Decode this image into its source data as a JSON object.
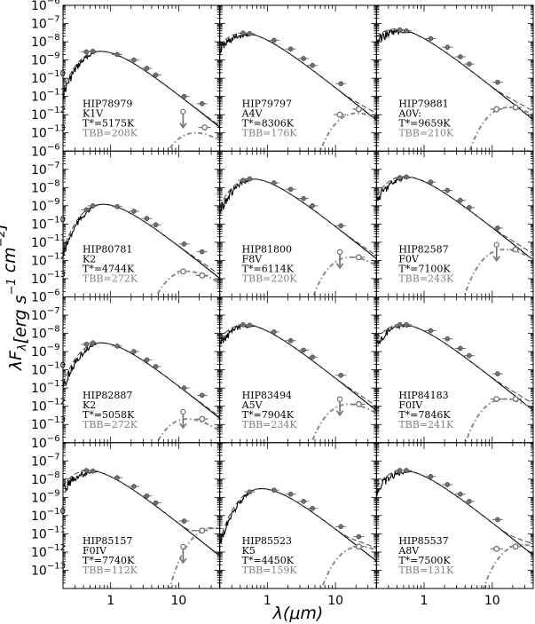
{
  "figure": {
    "ylabel": "λF_λ[erg s^-1 cm^-2]",
    "xlabel": "λ(μm)"
  },
  "axes": {
    "x_log": true,
    "y_log": true,
    "xlim": [
      0.2,
      40
    ],
    "ylim": [
      1e-14,
      1e-06
    ],
    "x_ticks": [
      1,
      10
    ],
    "x_tick_labels": [
      "1",
      "10"
    ],
    "y_ticks": [
      -13,
      -12,
      -11,
      -10,
      -9,
      -8,
      -7,
      -6
    ],
    "y_tick_labels": [
      "10^-13",
      "10^-12",
      "10^-11",
      "10^-10",
      "10^-9",
      "10^-8",
      "10^-7",
      "10^-6"
    ],
    "grid": false
  },
  "colors": {
    "star_model": "#000000",
    "disk_model": "#8a8a8a",
    "total_model": "#444444",
    "photometry": "#707070",
    "label_gray": "#808080"
  },
  "chart_data": [
    {
      "type": "line",
      "star": "HIP78979",
      "spectral_type": "K1V",
      "teff_label": "T*=5175K",
      "tbb_label": "TBB=208K",
      "teff": 5175,
      "tbb": 208,
      "star_peak": 3e-09,
      "disk_peak": 1e-13,
      "photometry": [
        [
          0.44,
          2.8e-09
        ],
        [
          0.55,
          3e-09
        ],
        [
          1.25,
          2e-09
        ],
        [
          2.2,
          1e-09
        ],
        [
          3.4,
          3.5e-10
        ],
        [
          4.6,
          1.5e-10
        ],
        [
          12,
          1e-11
        ],
        [
          22,
          4e-12
        ]
      ],
      "upper_limits": [
        [
          11.6,
          6e-13
        ]
      ],
      "excess": [
        [
          24,
          2e-13
        ]
      ]
    },
    {
      "type": "line",
      "star": "HIP79797",
      "spectral_type": "A4V",
      "teff_label": "T*=8306K",
      "tbb_label": "TBB=176K",
      "teff": 8306,
      "tbb": 176,
      "star_peak": 3e-08,
      "disk_peak": 1.2e-12,
      "photometry": [
        [
          0.44,
          3e-08
        ],
        [
          0.55,
          2.8e-08
        ],
        [
          1.25,
          1.2e-08
        ],
        [
          2.2,
          4e-09
        ],
        [
          3.4,
          1.2e-09
        ],
        [
          4.6,
          5e-10
        ],
        [
          12,
          5e-11
        ]
      ],
      "upper_limits": [],
      "excess": [
        [
          11.6,
          1e-12
        ],
        [
          22,
          2e-12
        ]
      ]
    },
    {
      "type": "line",
      "star": "HIP79881",
      "spectral_type": "A0V:",
      "teff_label": "T*=9659K",
      "tbb_label": "TBB=210K",
      "teff": 9659,
      "tbb": 210,
      "star_peak": 5e-08,
      "disk_peak": 2.5e-12,
      "photometry": [
        [
          0.44,
          4.5e-08
        ],
        [
          0.55,
          4e-08
        ],
        [
          1.25,
          1.5e-08
        ],
        [
          2.2,
          5e-09
        ],
        [
          3.4,
          1.5e-09
        ],
        [
          4.6,
          6e-10
        ],
        [
          12,
          6e-11
        ]
      ],
      "upper_limits": [],
      "excess": [
        [
          11.6,
          2e-12
        ],
        [
          22,
          2.5e-12
        ]
      ]
    },
    {
      "type": "line",
      "star": "HIP80781",
      "spectral_type": "K2",
      "teff_label": "T*=4744K",
      "tbb_label": "TBB=272K",
      "teff": 4744,
      "tbb": 272,
      "star_peak": 1.2e-09,
      "disk_peak": 2.5e-13,
      "photometry": [
        [
          0.44,
          6e-10
        ],
        [
          0.55,
          1e-09
        ],
        [
          1.25,
          9e-10
        ],
        [
          2.2,
          5e-10
        ],
        [
          3.4,
          2e-10
        ],
        [
          4.6,
          9e-11
        ],
        [
          12,
          8e-12
        ],
        [
          22,
          3e-12
        ]
      ],
      "upper_limits": [],
      "excess": [
        [
          11.6,
          2.5e-13
        ],
        [
          22,
          1.5e-13
        ]
      ]
    },
    {
      "type": "line",
      "star": "HIP81800",
      "spectral_type": "F8V",
      "teff_label": "T*=6114K",
      "tbb_label": "TBB=220K",
      "teff": 6114,
      "tbb": 220,
      "star_peak": 3e-08,
      "disk_peak": 1.5e-12,
      "photometry": [
        [
          0.44,
          2.5e-08
        ],
        [
          0.55,
          3e-08
        ],
        [
          1.25,
          1.8e-08
        ],
        [
          2.2,
          8e-09
        ],
        [
          3.4,
          2.5e-09
        ],
        [
          4.6,
          1e-09
        ],
        [
          12,
          8e-11
        ]
      ],
      "upper_limits": [
        [
          11.6,
          1.2e-12
        ]
      ],
      "excess": [
        [
          22,
          1.5e-12
        ]
      ]
    },
    {
      "type": "line",
      "star": "HIP82587",
      "spectral_type": "F0V",
      "teff_label": "T*=7100K",
      "tbb_label": "TBB=243K",
      "teff": 7100,
      "tbb": 243,
      "star_peak": 4e-08,
      "disk_peak": 4e-12,
      "photometry": [
        [
          0.44,
          3.5e-08
        ],
        [
          0.55,
          3.8e-08
        ],
        [
          1.25,
          2e-08
        ],
        [
          2.2,
          7e-09
        ],
        [
          3.4,
          2e-09
        ],
        [
          4.6,
          8e-10
        ],
        [
          12,
          6e-11
        ]
      ],
      "upper_limits": [
        [
          11.6,
          3e-12
        ]
      ],
      "excess": [
        [
          22,
          4e-12
        ]
      ]
    },
    {
      "type": "line",
      "star": "HIP82887",
      "spectral_type": "K2",
      "teff_label": "T*=5058K",
      "tbb_label": "TBB=272K",
      "teff": 5058,
      "tbb": 272,
      "star_peak": 3e-09,
      "disk_peak": 2e-13,
      "photometry": [
        [
          0.44,
          2.5e-09
        ],
        [
          0.55,
          3e-09
        ],
        [
          1.25,
          2e-09
        ],
        [
          2.2,
          1e-09
        ],
        [
          3.4,
          3.5e-10
        ],
        [
          4.6,
          1.5e-10
        ],
        [
          12,
          1e-11
        ],
        [
          22,
          4e-12
        ]
      ],
      "upper_limits": [
        [
          11.6,
          2e-13
        ]
      ],
      "excess": [
        [
          22,
          2e-13
        ]
      ]
    },
    {
      "type": "line",
      "star": "HIP83494",
      "spectral_type": "A5V",
      "teff_label": "T*=7904K",
      "tbb_label": "TBB=234K",
      "teff": 7904,
      "tbb": 234,
      "star_peak": 3e-08,
      "disk_peak": 1.3e-12,
      "photometry": [
        [
          0.44,
          3e-08
        ],
        [
          0.55,
          2.8e-08
        ],
        [
          1.25,
          1.2e-08
        ],
        [
          2.2,
          4e-09
        ],
        [
          3.4,
          1.2e-09
        ],
        [
          4.6,
          5e-10
        ],
        [
          12,
          5e-11
        ]
      ],
      "upper_limits": [
        [
          11.6,
          1e-12
        ]
      ],
      "excess": [
        [
          22,
          1.3e-12
        ]
      ]
    },
    {
      "type": "line",
      "star": "HIP84183",
      "spectral_type": "F0IV",
      "teff_label": "T*=7846K",
      "tbb_label": "TBB=241K",
      "teff": 7846,
      "tbb": 241,
      "star_peak": 3e-08,
      "disk_peak": 2.5e-12,
      "photometry": [
        [
          0.44,
          3e-08
        ],
        [
          0.55,
          3e-08
        ],
        [
          1.25,
          1.4e-08
        ],
        [
          2.2,
          5e-09
        ],
        [
          3.4,
          1.5e-09
        ],
        [
          4.6,
          6e-10
        ],
        [
          12,
          6e-11
        ]
      ],
      "upper_limits": [],
      "excess": [
        [
          11.6,
          2.5e-12
        ],
        [
          22,
          2.5e-12
        ]
      ]
    },
    {
      "type": "line",
      "star": "HIP85157",
      "spectral_type": "F0IV",
      "teff_label": "T*=7740K",
      "tbb_label": "TBB=112K",
      "teff": 7740,
      "tbb": 112,
      "star_peak": 3e-08,
      "disk_peak": 2e-11,
      "photometry": [
        [
          0.44,
          3e-08
        ],
        [
          0.55,
          2.8e-08
        ],
        [
          1.25,
          1.2e-08
        ],
        [
          2.2,
          4e-09
        ],
        [
          3.4,
          1.2e-09
        ],
        [
          4.6,
          5e-10
        ],
        [
          12,
          5e-11
        ]
      ],
      "upper_limits": [
        [
          11.6,
          8e-13
        ]
      ],
      "excess": [
        [
          22,
          1.5e-11
        ]
      ]
    },
    {
      "type": "line",
      "star": "HIP85523",
      "spectral_type": "K5",
      "teff_label": "T*=4450K",
      "tbb_label": "TBB=159K",
      "teff": 4450,
      "tbb": 159,
      "star_peak": 3e-09,
      "disk_peak": 2e-12,
      "photometry": [
        [
          0.55,
          2e-09
        ],
        [
          1.25,
          2.5e-09
        ],
        [
          2.2,
          1.5e-09
        ],
        [
          3.4,
          6e-10
        ],
        [
          4.6,
          2.5e-10
        ],
        [
          12,
          2.5e-11
        ],
        [
          22,
          7e-12
        ]
      ],
      "upper_limits": [],
      "excess": [
        [
          22,
          2e-12
        ]
      ]
    },
    {
      "type": "line",
      "star": "HIP85537",
      "spectral_type": "A8V",
      "teff_label": "T*=7500K",
      "tbb_label": "TBB=131K",
      "teff": 7500,
      "tbb": 131,
      "star_peak": 3e-08,
      "disk_peak": 2.5e-12,
      "photometry": [
        [
          0.44,
          3e-08
        ],
        [
          0.55,
          3e-08
        ],
        [
          1.25,
          1.4e-08
        ],
        [
          2.2,
          5e-09
        ],
        [
          3.4,
          1.5e-09
        ],
        [
          4.6,
          6e-10
        ],
        [
          12,
          6e-11
        ]
      ],
      "upper_limits": [],
      "excess": [
        [
          11.6,
          1.5e-12
        ],
        [
          22,
          2e-12
        ]
      ]
    }
  ]
}
